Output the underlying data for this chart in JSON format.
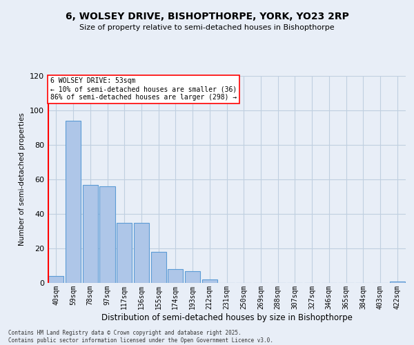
{
  "title_line1": "6, WOLSEY DRIVE, BISHOPTHORPE, YORK, YO23 2RP",
  "title_line2": "Size of property relative to semi-detached houses in Bishopthorpe",
  "xlabel": "Distribution of semi-detached houses by size in Bishopthorpe",
  "ylabel": "Number of semi-detached properties",
  "footnote": "Contains HM Land Registry data © Crown copyright and database right 2025.\nContains public sector information licensed under the Open Government Licence v3.0.",
  "categories": [
    "40sqm",
    "59sqm",
    "78sqm",
    "97sqm",
    "117sqm",
    "136sqm",
    "155sqm",
    "174sqm",
    "193sqm",
    "212sqm",
    "231sqm",
    "250sqm",
    "269sqm",
    "288sqm",
    "307sqm",
    "327sqm",
    "346sqm",
    "365sqm",
    "384sqm",
    "403sqm",
    "422sqm"
  ],
  "values": [
    4,
    94,
    57,
    56,
    35,
    35,
    18,
    8,
    7,
    2,
    0,
    0,
    0,
    0,
    0,
    0,
    0,
    0,
    0,
    0,
    1
  ],
  "bar_color": "#aec6e8",
  "bar_edge_color": "#5b9bd5",
  "highlight_label": "6 WOLSEY DRIVE: 53sqm",
  "highlight_smaller": "← 10% of semi-detached houses are smaller (36)",
  "highlight_larger": "86% of semi-detached houses are larger (298) →",
  "highlight_color": "red",
  "annotation_box_color": "white",
  "annotation_box_edge_color": "red",
  "ylim": [
    0,
    120
  ],
  "yticks": [
    0,
    20,
    40,
    60,
    80,
    100,
    120
  ],
  "grid_color": "#c0cfe0",
  "bg_color": "#e8eef7"
}
